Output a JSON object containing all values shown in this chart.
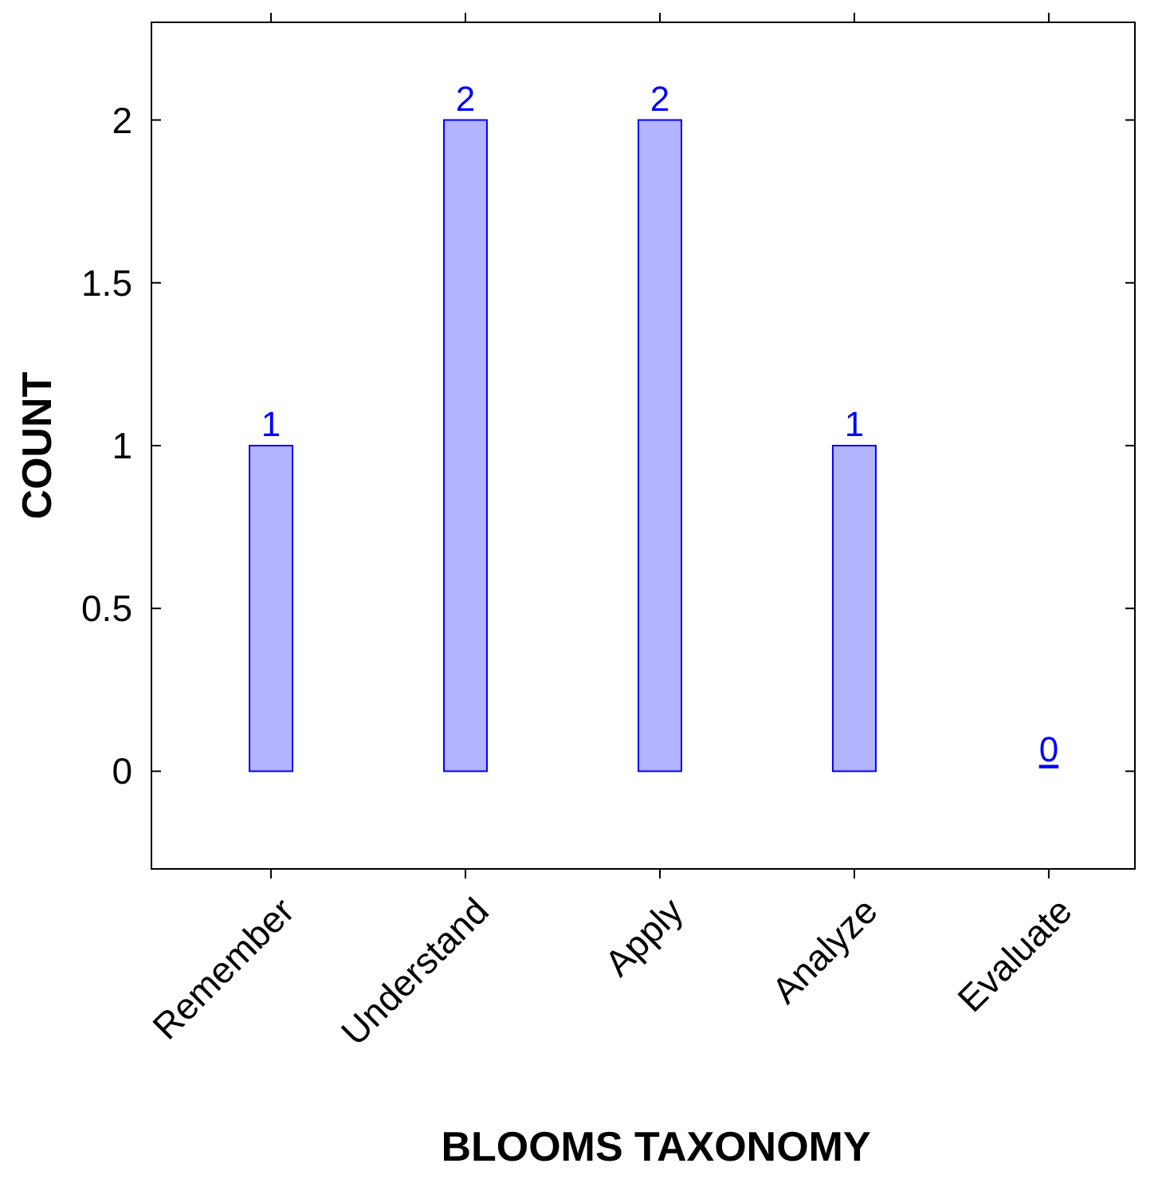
{
  "chart_data": {
    "type": "bar",
    "xlabel": "BLOOMS TAXONOMY",
    "ylabel": "COUNT",
    "categories": [
      "Remember",
      "Understand",
      "Apply",
      "Analyze",
      "Evaluate"
    ],
    "values": [
      1,
      2,
      2,
      1,
      0
    ],
    "color": "#b3b3ff",
    "ylim": [
      -0.3,
      2.3
    ],
    "yticks": [
      0,
      0.5,
      1,
      1.5,
      2
    ],
    "data_labels": true
  }
}
